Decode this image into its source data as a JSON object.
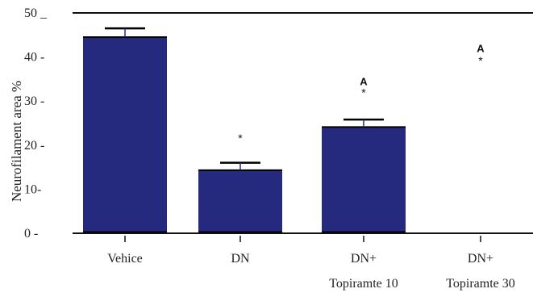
{
  "chart_data": {
    "type": "bar",
    "ylabel": "Neurofilament area %",
    "xlabel": "",
    "ylim": [
      0,
      50
    ],
    "yticks": [
      {
        "value": 50,
        "label": "50 _"
      },
      {
        "value": 40,
        "label": "40 -"
      },
      {
        "value": 30,
        "label": "30 -"
      },
      {
        "value": 20,
        "label": "20 -"
      },
      {
        "value": 10,
        "label": "10-"
      },
      {
        "value": 0,
        "label": "0 -"
      }
    ],
    "categories": [
      {
        "line1": "Vehice",
        "line2": ""
      },
      {
        "line1": "DN",
        "line2": ""
      },
      {
        "line1": "DN+",
        "line2": "Topiramte 10"
      },
      {
        "line1": "DN+",
        "line2": "Topiramte 30"
      }
    ],
    "values": [
      44.5,
      14.3,
      24.1,
      0
    ],
    "error_upper": [
      46.5,
      16.0,
      25.8,
      null
    ],
    "stars": [
      "",
      "*",
      "*",
      "*"
    ],
    "star_value": [
      null,
      22.0,
      32.3,
      39.6
    ],
    "annotations": [
      "",
      "",
      "A",
      "A"
    ],
    "annotation_value": [
      null,
      null,
      34.5,
      42.0
    ],
    "colors": {
      "bar": "#252a7e",
      "axis": "#111111"
    }
  }
}
